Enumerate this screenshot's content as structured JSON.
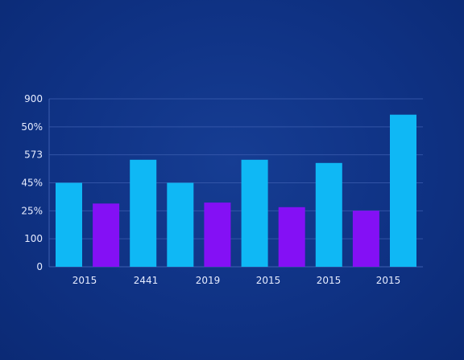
{
  "chart_data": {
    "type": "bar",
    "categories": [
      "2015",
      "2441",
      "2019",
      "2015",
      "2015",
      "2015"
    ],
    "series": [
      {
        "values": [
          600,
          765,
          600,
          765,
          742,
          1087
        ]
      },
      {
        "values": [
          452,
          null,
          459,
          426,
          401,
          null
        ]
      }
    ],
    "y_tick_labels": [
      "0",
      "100",
      "25%",
      "45%",
      "573",
      "50%",
      "900"
    ],
    "x_tick_labels": [
      "2015",
      "2441",
      "2019",
      "2015",
      "2015",
      "2015"
    ],
    "ylim": [
      0,
      1200
    ],
    "grid": true,
    "colors": {
      "background": "#0f3284",
      "series_1": "#0fb8f5",
      "series_2": "#8410f5",
      "grid": "#3d5fb0",
      "text": "#e6ecff"
    }
  }
}
